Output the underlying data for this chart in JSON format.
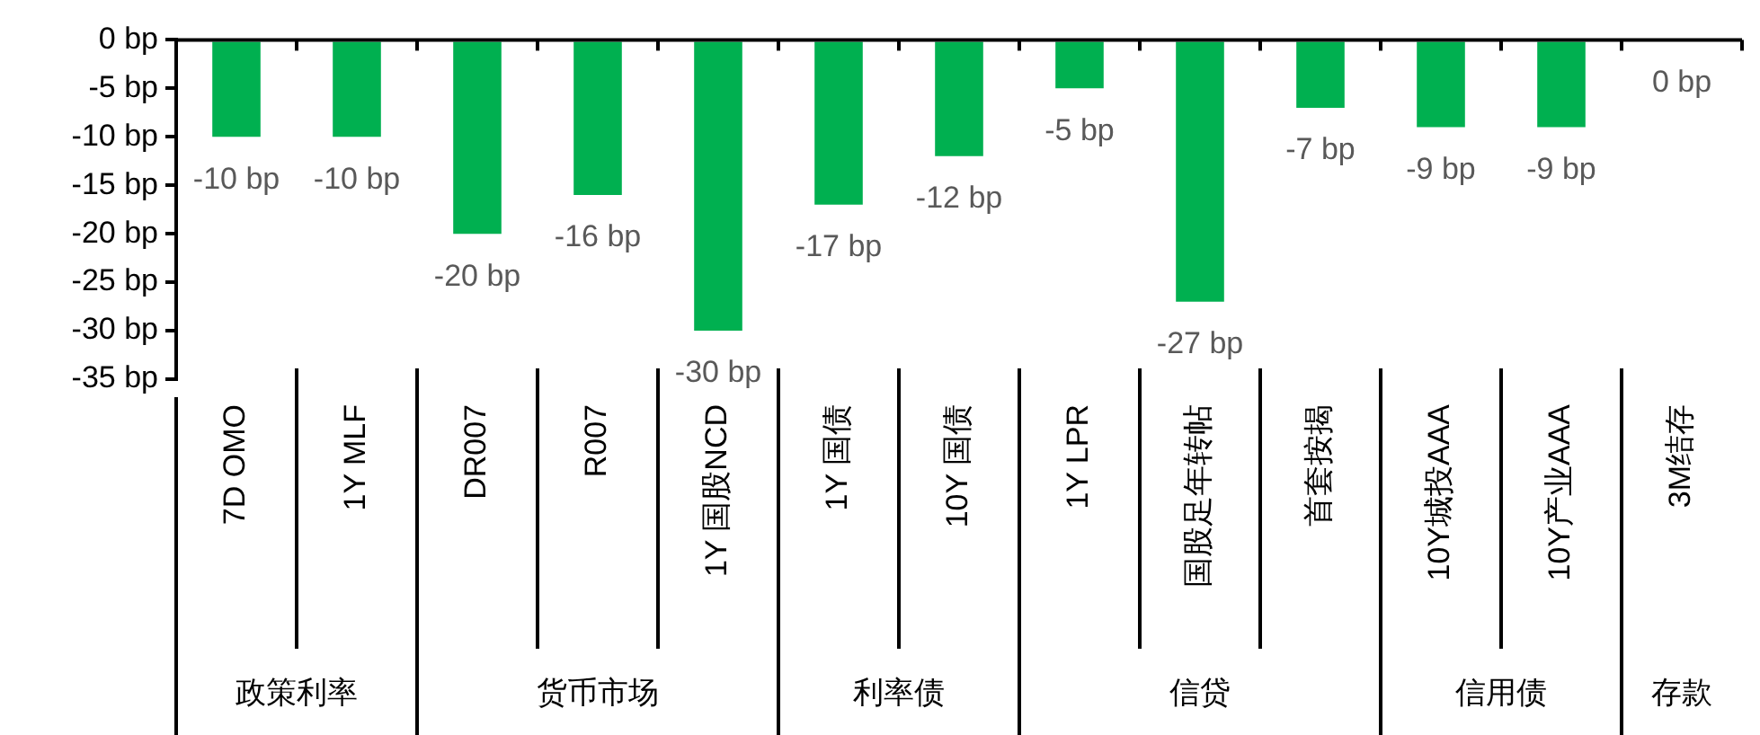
{
  "chart_data": {
    "type": "bar",
    "categories": [
      "7D OMO",
      "1Y MLF",
      "DR007",
      "R007",
      "1Y 国股NCD",
      "1Y 国债",
      "10Y 国债",
      "1Y LPR",
      "国股足年转帖",
      "首套按揭",
      "10Y城投AAA",
      "10Y产业AAA",
      "3M结存"
    ],
    "values": [
      -10,
      -10,
      -20,
      -16,
      -30,
      -17,
      -12,
      -5,
      -27,
      -7,
      -9,
      -9,
      0
    ],
    "value_labels": [
      "-10 bp",
      "-10 bp",
      "-20 bp",
      "-16 bp",
      "-30 bp",
      "-17 bp",
      "-12 bp",
      "-5 bp",
      "-27 bp",
      "-7 bp",
      "-9 bp",
      "-9 bp",
      "0 bp"
    ],
    "color": "#00b050",
    "ylim": [
      -35,
      0
    ],
    "yticks": [
      {
        "value": 0,
        "label": "0 bp"
      },
      {
        "value": -5,
        "label": "-5 bp"
      },
      {
        "value": -10,
        "label": "-10 bp"
      },
      {
        "value": -15,
        "label": "-15 bp"
      },
      {
        "value": -20,
        "label": "-20 bp"
      },
      {
        "value": -25,
        "label": "-25 bp"
      },
      {
        "value": -30,
        "label": "-30 bp"
      },
      {
        "value": -35,
        "label": "-35 bp"
      }
    ],
    "annotations": [
      "政策利率",
      "货币市场",
      "利率债",
      "信贷",
      "信用债",
      "存款"
    ],
    "grid": false,
    "legend": false
  }
}
